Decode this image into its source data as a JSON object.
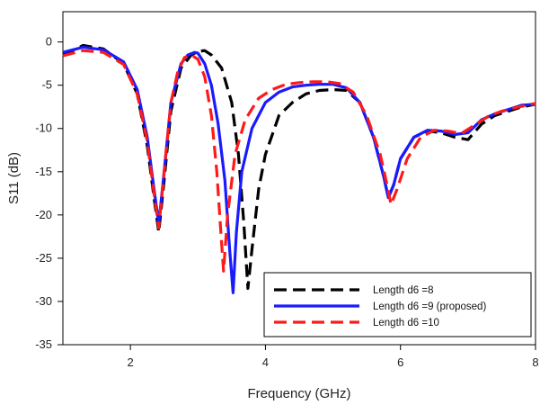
{
  "chart_data": {
    "type": "line",
    "title": "",
    "xlabel": "Frequency (GHz)",
    "ylabel": "S11 (dB)",
    "xlim": [
      1,
      8
    ],
    "ylim": [
      -35,
      3.5
    ],
    "xticks": [
      "2",
      "4",
      "6",
      "8"
    ],
    "xtick_values": [
      2,
      4,
      6,
      8
    ],
    "yticks": [
      "0",
      "-5",
      "-10",
      "-15",
      "-20",
      "-25",
      "-30",
      "-35"
    ],
    "ytick_values": [
      0,
      -5,
      -10,
      -15,
      -20,
      -25,
      -30,
      -35
    ],
    "grid": false,
    "legend_position": "bottom-right",
    "series": [
      {
        "name": "Length d6 =8",
        "color": "#000000",
        "style": "dashed",
        "x": [
          1.0,
          1.3,
          1.6,
          1.9,
          2.1,
          2.25,
          2.35,
          2.42,
          2.5,
          2.6,
          2.75,
          2.9,
          3.0,
          3.1,
          3.2,
          3.35,
          3.5,
          3.6,
          3.68,
          3.74,
          3.8,
          3.9,
          4.0,
          4.2,
          4.4,
          4.6,
          4.8,
          5.0,
          5.2,
          5.4,
          5.6,
          5.75,
          5.82,
          5.9,
          6.0,
          6.2,
          6.4,
          6.6,
          6.8,
          7.0,
          7.2,
          7.4,
          7.6,
          7.8,
          8.0
        ],
        "y": [
          -1.5,
          -0.4,
          -0.8,
          -2.5,
          -6.0,
          -12.0,
          -18.0,
          -22.0,
          -16.0,
          -8.0,
          -3.0,
          -1.5,
          -1.1,
          -1.0,
          -1.5,
          -3.0,
          -7.0,
          -13.0,
          -21.0,
          -28.5,
          -24.0,
          -17.0,
          -13.0,
          -8.5,
          -7.0,
          -6.0,
          -5.6,
          -5.5,
          -5.6,
          -7.0,
          -11.0,
          -15.5,
          -18.0,
          -16.5,
          -13.5,
          -11.0,
          -10.3,
          -10.5,
          -11.0,
          -11.3,
          -9.5,
          -8.5,
          -8.0,
          -7.5,
          -7.2
        ]
      },
      {
        "name": "Length d6 =9 (proposed)",
        "color": "#1a1aff",
        "style": "solid",
        "x": [
          1.0,
          1.3,
          1.6,
          1.9,
          2.1,
          2.25,
          2.35,
          2.42,
          2.5,
          2.6,
          2.75,
          2.85,
          2.95,
          3.0,
          3.1,
          3.2,
          3.3,
          3.4,
          3.47,
          3.52,
          3.57,
          3.65,
          3.8,
          4.0,
          4.2,
          4.4,
          4.6,
          4.8,
          5.0,
          5.2,
          5.4,
          5.6,
          5.75,
          5.82,
          5.9,
          6.0,
          6.2,
          6.4,
          6.6,
          6.8,
          7.0,
          7.2,
          7.4,
          7.6,
          7.8,
          8.0
        ],
        "y": [
          -1.2,
          -0.6,
          -0.9,
          -2.3,
          -5.5,
          -11.0,
          -17.0,
          -21.0,
          -15.0,
          -7.0,
          -2.5,
          -1.5,
          -1.2,
          -1.3,
          -2.5,
          -5.0,
          -9.5,
          -16.0,
          -24.0,
          -29.0,
          -22.0,
          -15.0,
          -10.0,
          -7.0,
          -5.8,
          -5.2,
          -5.0,
          -4.9,
          -4.9,
          -5.3,
          -7.0,
          -11.0,
          -15.5,
          -18.0,
          -16.5,
          -13.5,
          -11.0,
          -10.2,
          -10.3,
          -10.7,
          -10.5,
          -9.0,
          -8.3,
          -7.8,
          -7.3,
          -7.2
        ]
      },
      {
        "name": "Length d6 =10",
        "color": "#ff1a1a",
        "style": "dashed",
        "x": [
          1.0,
          1.3,
          1.6,
          1.9,
          2.1,
          2.25,
          2.35,
          2.42,
          2.5,
          2.6,
          2.7,
          2.8,
          2.9,
          3.0,
          3.1,
          3.2,
          3.28,
          3.34,
          3.38,
          3.44,
          3.55,
          3.7,
          3.9,
          4.1,
          4.3,
          4.5,
          4.7,
          4.9,
          5.1,
          5.3,
          5.5,
          5.7,
          5.8,
          5.86,
          5.95,
          6.1,
          6.3,
          6.5,
          6.7,
          6.9,
          7.1,
          7.3,
          7.5,
          7.7,
          8.0
        ],
        "y": [
          -1.6,
          -1.0,
          -1.2,
          -2.6,
          -6.0,
          -11.5,
          -17.5,
          -21.5,
          -15.0,
          -7.0,
          -3.5,
          -1.8,
          -1.5,
          -2.0,
          -4.0,
          -8.5,
          -15.0,
          -22.0,
          -26.5,
          -20.0,
          -13.0,
          -9.0,
          -6.5,
          -5.5,
          -4.9,
          -4.7,
          -4.6,
          -4.6,
          -4.8,
          -5.8,
          -8.5,
          -13.0,
          -16.5,
          -18.8,
          -17.0,
          -13.5,
          -11.0,
          -10.2,
          -10.3,
          -10.6,
          -9.6,
          -8.6,
          -8.0,
          -7.6,
          -7.1
        ]
      }
    ]
  }
}
